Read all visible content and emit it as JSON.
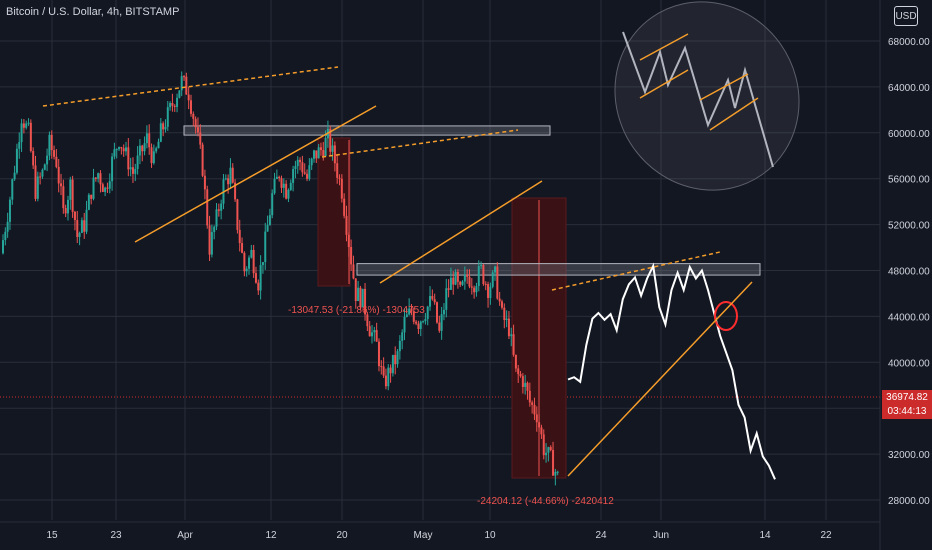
{
  "header": {
    "title": "Bitcoin / U.S. Dollar, 4h, BITSTAMP",
    "currency_button": "USD"
  },
  "price_tags": {
    "last_price": "36974.82",
    "countdown": "03:44:13"
  },
  "annotations": {
    "drop1": "-13047.53 (-21.86%) -1304753",
    "drop2": "-24204.12 (-44.66%) -2420412"
  },
  "colors": {
    "background": "#131722",
    "up": "#26a69a",
    "down": "#ef5350",
    "projection": "#ffffff",
    "trendline": "#f59d2a",
    "zone": "#3a1216",
    "grid": "#2a2e39",
    "price_line": "#cc2b2b"
  },
  "chart_data": {
    "type": "candlestick",
    "title": "Bitcoin / U.S. Dollar, 4h, BITSTAMP",
    "ylim": [
      26000,
      70000
    ],
    "y_ticks": [
      "28000.00",
      "32000.00",
      "36000.00",
      "40000.00",
      "44000.00",
      "48000.00",
      "52000.00",
      "56000.00",
      "60000.00",
      "64000.00",
      "68000.00"
    ],
    "x_ticks": [
      "15",
      "23",
      "Apr",
      "12",
      "20",
      "May",
      "10",
      "24",
      "Jun",
      "14",
      "22"
    ],
    "last_price": 36974.82,
    "resistance_zones": [
      [
        59800,
        60600
      ],
      [
        47600,
        48600
      ]
    ],
    "series": [
      {
        "name": "price",
        "values": [
          49500,
          53000,
          57000,
          61500,
          60000,
          55000,
          56500,
          59000,
          57500,
          53000,
          55500,
          51000,
          52000,
          55000,
          56500,
          55000,
          57500,
          59500,
          58000,
          56500,
          58000,
          59500,
          57500,
          60000,
          61500,
          63000,
          64500,
          63500,
          60500,
          57000,
          50000,
          52500,
          55500,
          56500,
          52000,
          48000,
          49500,
          47000,
          50500,
          54500,
          56500,
          55000,
          57000,
          57500,
          56000,
          58000,
          58500,
          59500,
          57500,
          55000,
          50500,
          46000,
          45500,
          43000,
          41500,
          38000,
          39500,
          40500,
          43500,
          44500,
          43500,
          44500,
          45500,
          42500,
          46000,
          47500,
          46000,
          47500,
          47000,
          48000,
          46500,
          47500,
          44000,
          43000,
          39000,
          38500,
          36500,
          35500,
          32500,
          31500,
          30000
        ]
      },
      {
        "name": "projection",
        "values": [
          38500,
          38700,
          38300,
          41500,
          43800,
          44300,
          43700,
          44200,
          42800,
          45500,
          46800,
          47400,
          45800,
          47300,
          48400,
          44800,
          43300,
          46300,
          47800,
          46300,
          48300,
          47300,
          48000,
          46300,
          44300,
          42300,
          40800,
          39300,
          36300,
          35200,
          32300,
          33800,
          31800,
          31000,
          29800
        ]
      }
    ]
  }
}
